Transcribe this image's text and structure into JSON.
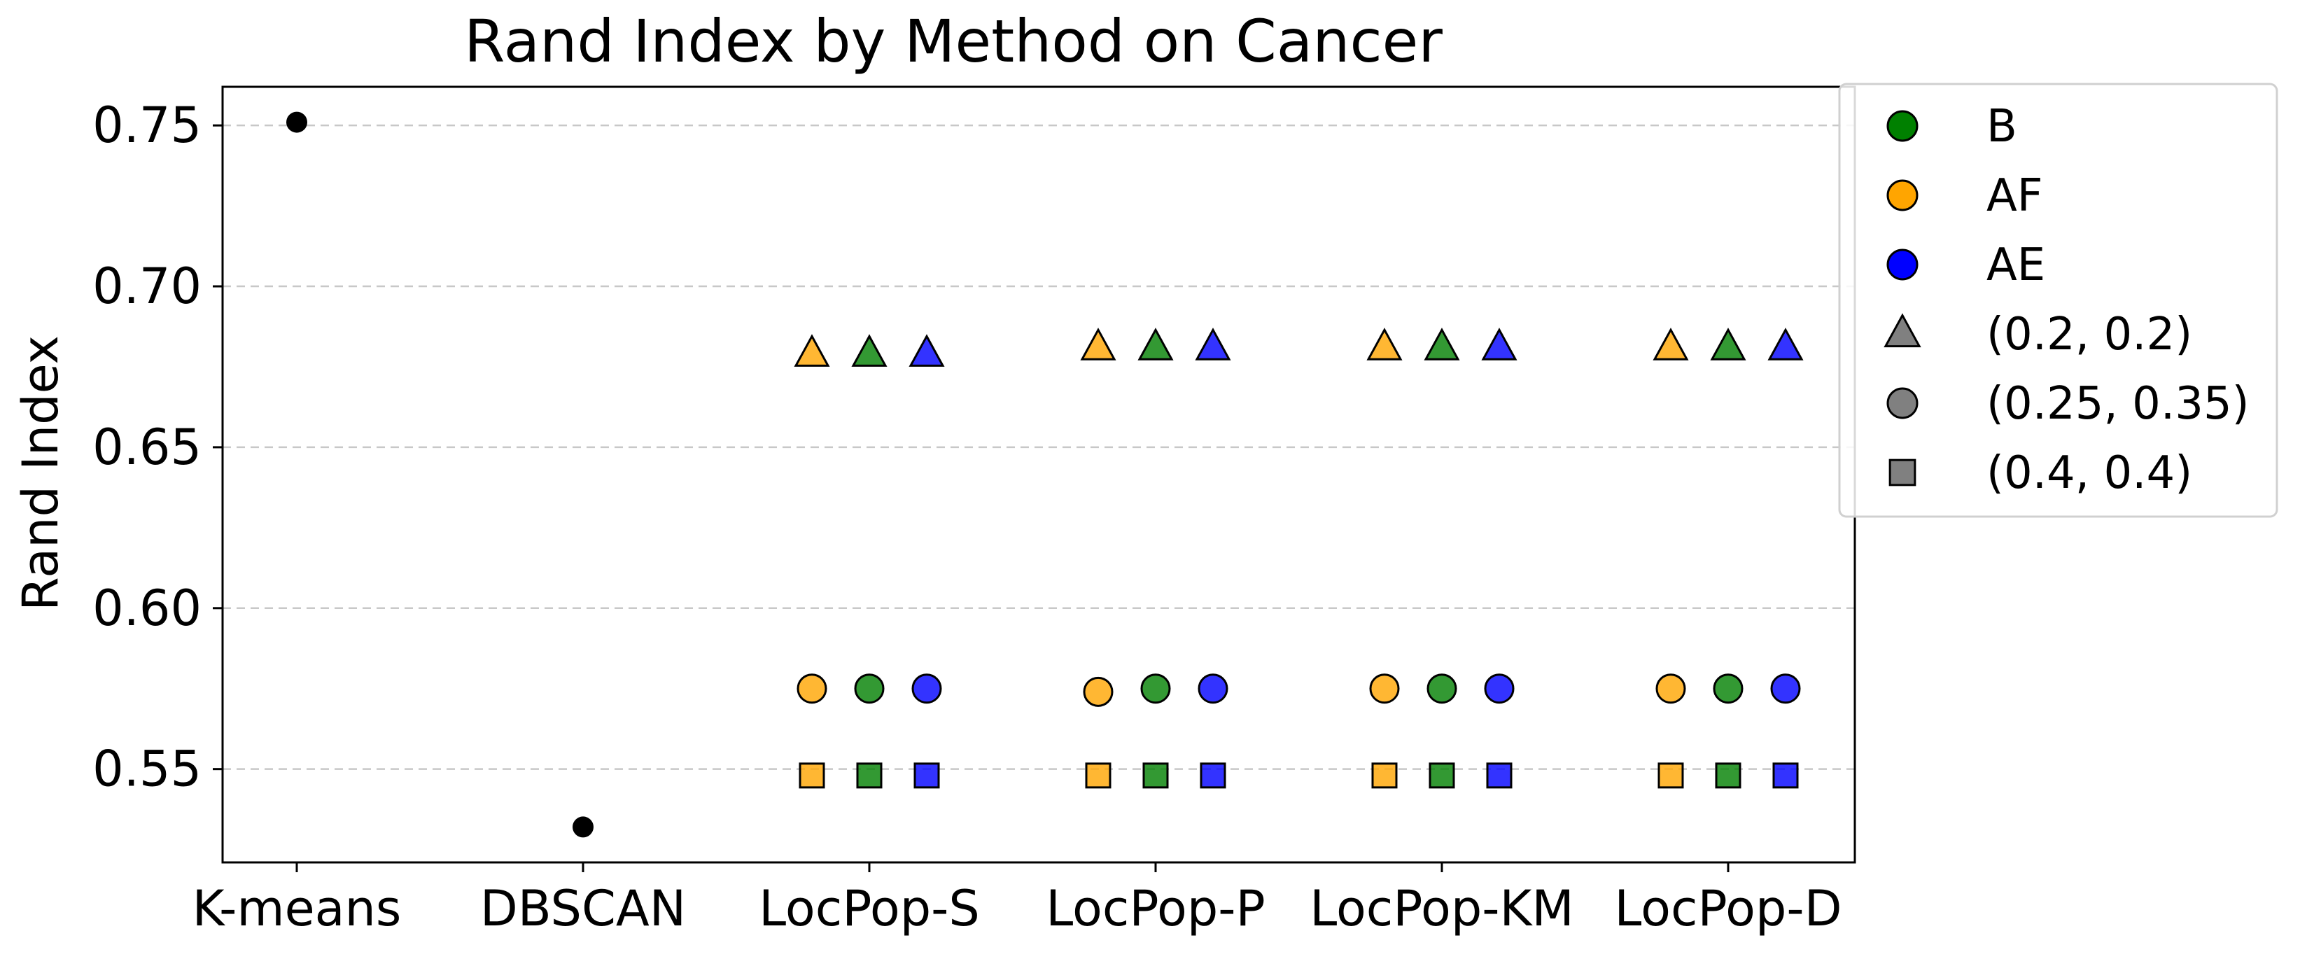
{
  "chart_data": {
    "type": "scatter",
    "title": "Rand Index by Method on Cancer",
    "xlabel": "",
    "ylabel": "Rand Index",
    "categories": [
      "K-means",
      "DBSCAN",
      "LocPop-S",
      "LocPop-P",
      "LocPop-KM",
      "LocPop-D"
    ],
    "yticks": [
      "0.55",
      "0.60",
      "0.65",
      "0.70",
      "0.75"
    ],
    "ylim": [
      0.521,
      0.762
    ],
    "grid": "horizontal-dashed",
    "legend_position": "outside-top-right",
    "colors": {
      "B": "#008000",
      "AF": "#ffa500",
      "AE": "#0000ff",
      "baseline": "#000000",
      "neutral": "#808080"
    },
    "legend": [
      {
        "label": "B",
        "marker": "circle",
        "color": "#008000"
      },
      {
        "label": "AF",
        "marker": "circle",
        "color": "#ffa500"
      },
      {
        "label": "AE",
        "marker": "circle",
        "color": "#0000ff"
      },
      {
        "label": "(0.2, 0.2)",
        "marker": "triangle",
        "color": "#808080"
      },
      {
        "label": "(0.25, 0.35)",
        "marker": "circle",
        "color": "#808080"
      },
      {
        "label": "(0.4, 0.4)",
        "marker": "square",
        "color": "#808080"
      }
    ],
    "baseline_points": [
      {
        "method": "K-means",
        "y": 0.751
      },
      {
        "method": "DBSCAN",
        "y": 0.532
      }
    ],
    "series": [
      {
        "name": "AF",
        "color": "#ffa500",
        "offset": -1,
        "triangle": [
          0.679,
          0.681,
          0.681,
          0.681
        ],
        "circle": [
          0.575,
          0.574,
          0.575,
          0.575
        ],
        "square": [
          0.548,
          0.548,
          0.548,
          0.548
        ]
      },
      {
        "name": "B",
        "color": "#008000",
        "offset": 0,
        "triangle": [
          0.679,
          0.681,
          0.681,
          0.681
        ],
        "circle": [
          0.575,
          0.575,
          0.575,
          0.575
        ],
        "square": [
          0.548,
          0.548,
          0.548,
          0.548
        ]
      },
      {
        "name": "AE",
        "color": "#0000ff",
        "offset": 1,
        "triangle": [
          0.679,
          0.681,
          0.681,
          0.681
        ],
        "circle": [
          0.575,
          0.575,
          0.575,
          0.575
        ],
        "square": [
          0.548,
          0.548,
          0.548,
          0.548
        ]
      }
    ],
    "series_methods": [
      "LocPop-S",
      "LocPop-P",
      "LocPop-KM",
      "LocPop-D"
    ]
  }
}
